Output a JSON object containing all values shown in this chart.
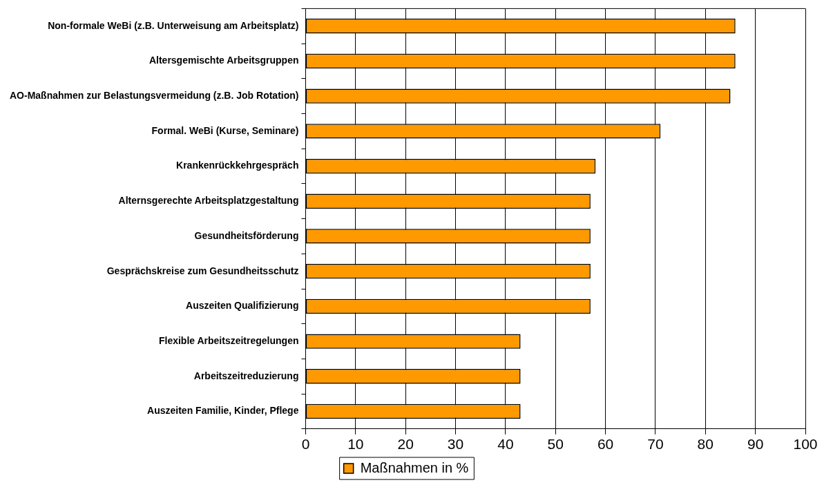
{
  "chart_data": {
    "type": "bar",
    "orientation": "horizontal",
    "categories": [
      "Non-formale WeBi (z.B. Unterweisung am Arbeitsplatz)",
      "Altersgemischte Arbeitsgruppen",
      "AO-Maßnahmen zur Belastungsvermeidung (z.B. Job Rotation)",
      "Formal. WeBi (Kurse, Seminare)",
      "Krankenrückkehrgespräch",
      "Alternsgerechte Arbeitsplatzgestaltung",
      "Gesundheitsförderung",
      "Gesprächskreise zum Gesundheitsschutz",
      "Auszeiten Qualifizierung",
      "Flexible Arbeitszeitregelungen",
      "Arbeitszeitreduzierung",
      "Auszeiten Familie, Kinder, Pflege"
    ],
    "series": [
      {
        "name": "Maßnahmen in %",
        "color": "#ff9900",
        "values": [
          86,
          86,
          85,
          71,
          58,
          57,
          57,
          57,
          57,
          43,
          43,
          43
        ]
      }
    ],
    "xlim": [
      0,
      100
    ],
    "xticks": [
      0,
      10,
      20,
      30,
      40,
      50,
      60,
      70,
      80,
      90,
      100
    ],
    "grid": "x",
    "legend": "bottom"
  }
}
